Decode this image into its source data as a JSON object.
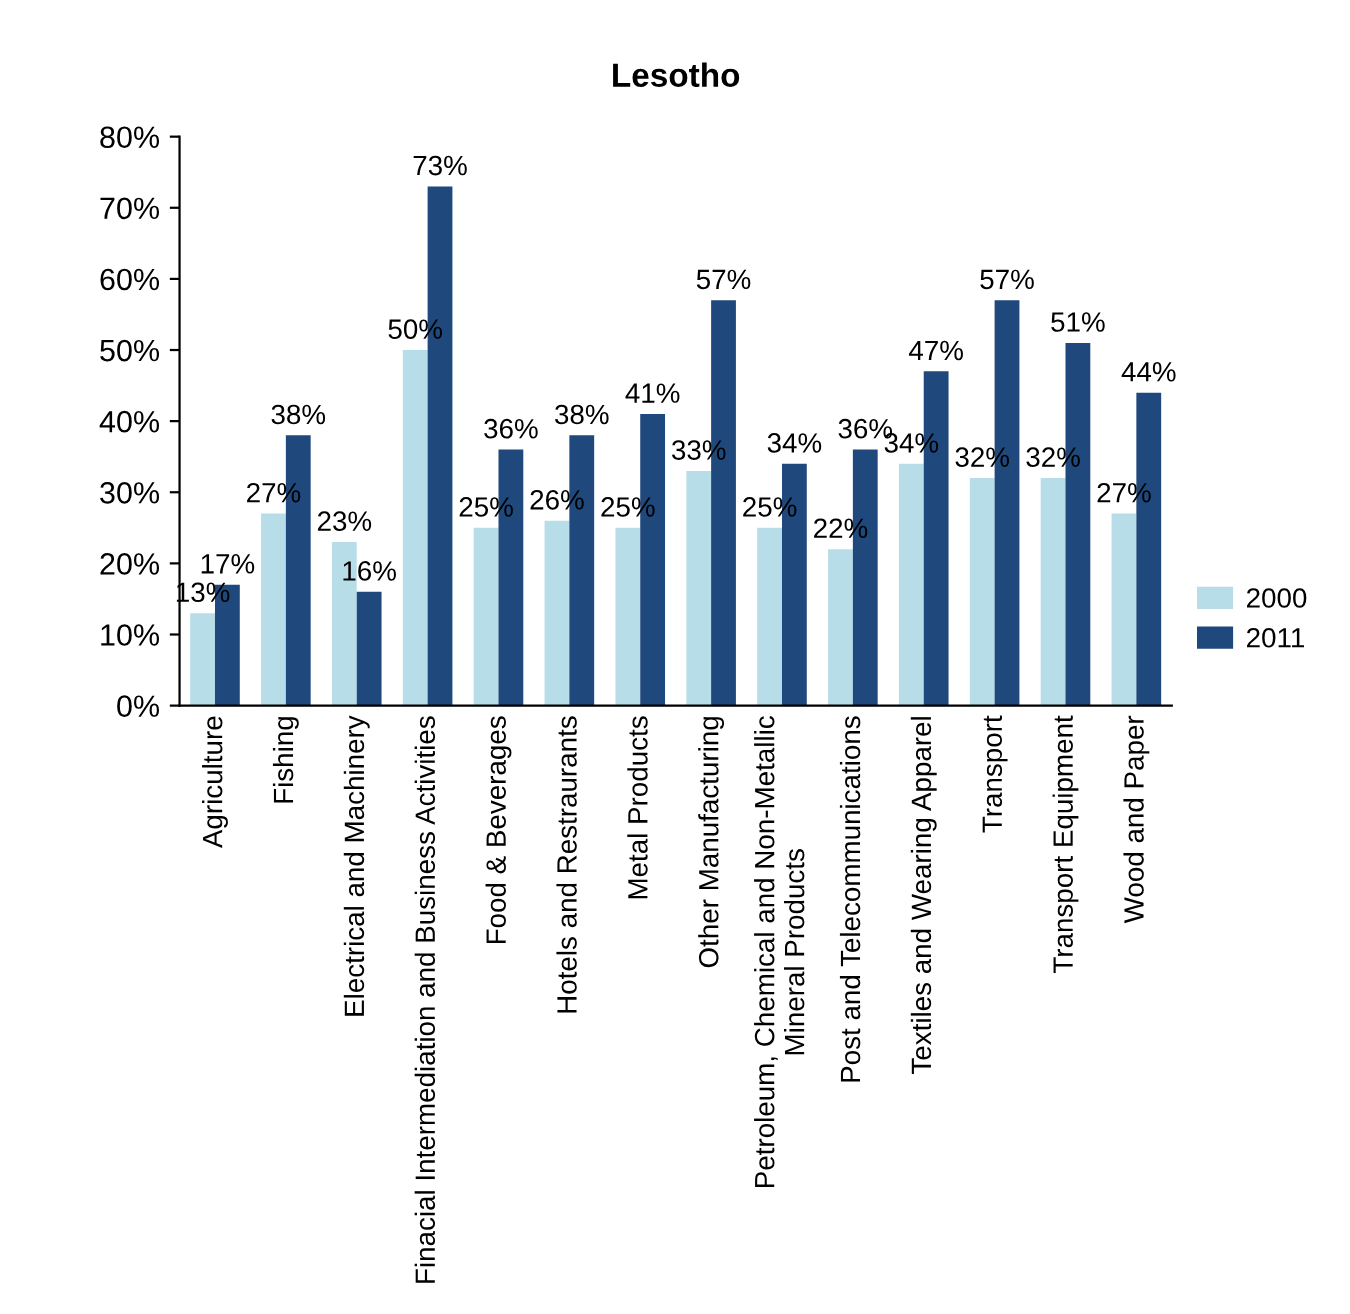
{
  "chart_data": {
    "type": "bar",
    "title": "Lesotho",
    "categories": [
      "Agriculture",
      "Fishing",
      "Electrical and Machinery",
      "Finacial Intermediation and Business Activities",
      "Food & Beverages",
      "Hotels and Restraurants",
      "Metal Products",
      "Other Manufacturing",
      "Petroleum, Chemical and Non-Metallic\nMineral Products",
      "Post and Telecommunications",
      "Textiles and Wearing Apparel",
      "Transport",
      "Transport Equipment",
      "Wood and Paper"
    ],
    "series": [
      {
        "name": "2000",
        "color": "#b7dee8",
        "values": [
          13,
          27,
          23,
          50,
          25,
          26,
          25,
          33,
          25,
          22,
          34,
          32,
          32,
          27
        ],
        "value_labels": [
          "13%",
          "27%",
          "23%",
          "50%",
          "25%",
          "26%",
          "25%",
          "33%",
          "25%",
          "22%",
          "34%",
          "32%",
          "32%",
          "27%"
        ]
      },
      {
        "name": "2011",
        "color": "#1f497d",
        "values": [
          17,
          38,
          16,
          73,
          36,
          38,
          41,
          57,
          34,
          36,
          47,
          57,
          51,
          44
        ],
        "value_labels": [
          "17%",
          "38%",
          "16%",
          "73%",
          "36%",
          "38%",
          "41%",
          "57%",
          "34%",
          "36%",
          "47%",
          "57%",
          "51%",
          "44%"
        ]
      }
    ],
    "ylim": [
      0,
      80
    ],
    "yticks": [
      {
        "value": 0,
        "label": "0%"
      },
      {
        "value": 10,
        "label": "10%"
      },
      {
        "value": 20,
        "label": "20%"
      },
      {
        "value": 30,
        "label": "30%"
      },
      {
        "value": 40,
        "label": "40%"
      },
      {
        "value": 50,
        "label": "50%"
      },
      {
        "value": 60,
        "label": "60%"
      },
      {
        "value": 70,
        "label": "70%"
      },
      {
        "value": 80,
        "label": "80%"
      }
    ],
    "grid": false,
    "legend": "right"
  }
}
